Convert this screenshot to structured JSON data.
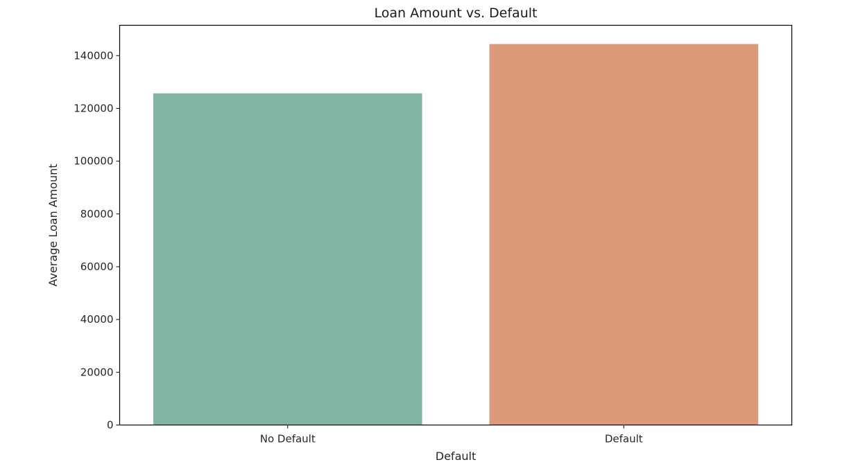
{
  "chart_data": {
    "type": "bar",
    "title": "Loan Amount vs. Default",
    "xlabel": "Default",
    "ylabel": "Average Loan Amount",
    "categories": [
      "No Default",
      "Default"
    ],
    "values": [
      125700,
      144400
    ],
    "colors": [
      "#82b4a3",
      "#dc9a7b"
    ],
    "ylim": [
      0,
      151500
    ],
    "yticks": [
      0,
      20000,
      40000,
      60000,
      80000,
      100000,
      120000,
      140000
    ],
    "ytick_labels": [
      "0",
      "20000",
      "40000",
      "60000",
      "80000",
      "100000",
      "120000",
      "140000"
    ],
    "grid": false,
    "legend": "none"
  }
}
